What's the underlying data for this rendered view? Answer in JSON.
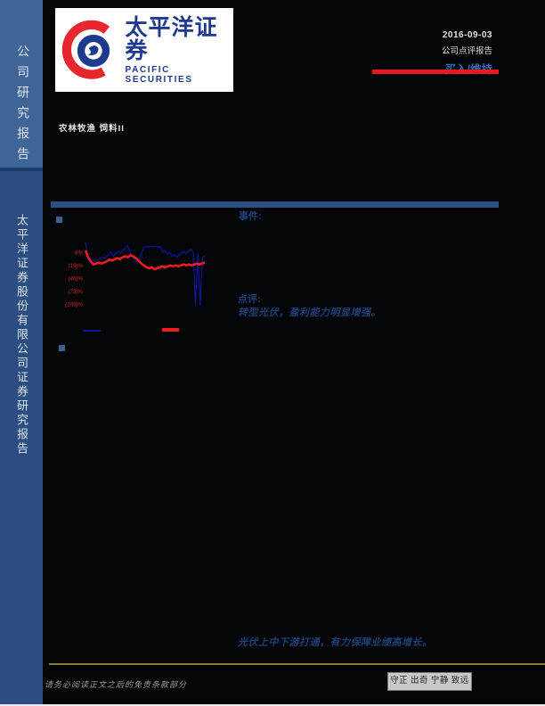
{
  "sidebar": {
    "top_label": "公司研究报告",
    "bottom_label": "太平洋证券股份有限公司证券研究报告",
    "top_bg": "#3f6496",
    "bottom_bg": "#2b4d80"
  },
  "logo": {
    "cn": "太平洋证券",
    "en": "PACIFIC SECURITIES",
    "brand_blue": "#1e3a8f",
    "brand_red": "#e8262d"
  },
  "header": {
    "industry": "农林牧渔 饲料II",
    "date": "2016-09-03",
    "report_type": "公司点评报告",
    "rating": "买入/维持",
    "rating_color": "#2f6bbf",
    "accent_red": "#e8191f"
  },
  "sections": {
    "event_label": "事件:",
    "comment_label": "点评:",
    "comment_highlight": "转型光伏，盈利能力明显增强。",
    "bottom_highlight": "光伏上中下游打通，有力保障业绩高增长。"
  },
  "footer": {
    "disclaimer": "请务必阅读正文之后的免责条款部分",
    "motto": "守正 出奇 宁静 致远",
    "gold_rule_color": "#8c7b36"
  },
  "chart_data": {
    "type": "line",
    "title": "",
    "xlabel": "",
    "ylabel": "",
    "grid": false,
    "legend_position": "bottom",
    "axis_label_color": "#d42824",
    "y_tick_labels": [
      "8%",
      "(19)%",
      "(46)%",
      "(73)%",
      "(100)%"
    ],
    "y_tick_values": [
      8,
      -19,
      -46,
      -73,
      -100
    ],
    "ylim": [
      -112,
      36
    ],
    "series": [
      {
        "name": "blue-line",
        "color": "#10169b",
        "width": 1.2,
        "values": [
          29,
          -6,
          -11,
          -7,
          -11,
          -9,
          -6,
          -2,
          -4,
          0,
          4,
          8,
          0,
          6,
          10,
          6,
          12,
          16,
          22,
          10,
          0,
          -7,
          -11,
          -6,
          6,
          20,
          19,
          20,
          20,
          19,
          20,
          19,
          20,
          8,
          12,
          4,
          8,
          0,
          4,
          -2,
          2,
          6,
          10,
          6,
          10,
          14,
          8,
          -102,
          6,
          -102,
          -2,
          0
        ]
      },
      {
        "name": "red-line",
        "color": "#ee1c23",
        "width": 2.6,
        "values": [
          12,
          -2,
          -11,
          -17,
          -15,
          -13,
          -15,
          -13,
          -11,
          -7,
          -9,
          -6,
          -4,
          -6,
          -2,
          0,
          -2,
          2,
          0,
          -4,
          -9,
          -15,
          -19,
          -23,
          -25,
          -23,
          -27,
          -25,
          -23,
          -21,
          -23,
          -21,
          -19,
          -21,
          -19,
          -21,
          -19,
          -17,
          -19,
          -17,
          -19,
          -17,
          -15,
          -17,
          -15,
          -13
        ]
      }
    ]
  }
}
